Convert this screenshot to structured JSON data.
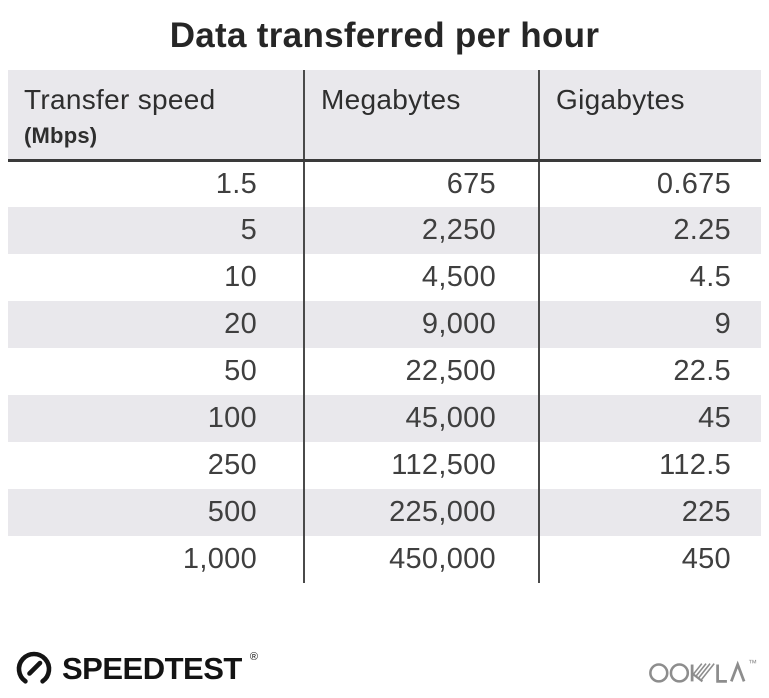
{
  "title": "Data transferred per hour",
  "table": {
    "columns": [
      {
        "label": "Transfer speed",
        "sublabel": "(Mbps)"
      },
      {
        "label": "Megabytes"
      },
      {
        "label": "Gigabytes"
      }
    ],
    "rows": [
      [
        "1.5",
        "675",
        "0.675"
      ],
      [
        "5",
        "2,250",
        "2.25"
      ],
      [
        "10",
        "4,500",
        "4.5"
      ],
      [
        "20",
        "9,000",
        "9"
      ],
      [
        "50",
        "22,500",
        "22.5"
      ],
      [
        "100",
        "45,000",
        "45"
      ],
      [
        "250",
        "112,500",
        "112.5"
      ],
      [
        "500",
        "225,000",
        "225"
      ],
      [
        "1,000",
        "450,000",
        "450"
      ]
    ]
  },
  "footer": {
    "speedtest_label": "SPEEDTEST",
    "speedtest_mark": "®",
    "ookla_label": "OOKLA",
    "ookla_mark": "™"
  },
  "icons": {
    "speedtest_gauge": "gauge-icon",
    "ookla_logo": "ookla-logo"
  },
  "colors": {
    "title_text": "#262626",
    "header_bg": "#e9e8ec",
    "row_alt_bg": "#e9e8ec",
    "header_text": "#2e2e2e",
    "header_rule": "#3a3a3a",
    "divider": "#4a4a4a",
    "body_text": "#3f3f3f",
    "speedtest_brand": "#141414",
    "ookla_gray": "#8d8d8d"
  },
  "chart_data": {
    "type": "table",
    "title": "Data transferred per hour",
    "columns": [
      "Transfer speed (Mbps)",
      "Megabytes",
      "Gigabytes"
    ],
    "rows": [
      [
        1.5,
        675,
        0.675
      ],
      [
        5,
        2250,
        2.25
      ],
      [
        10,
        4500,
        4.5
      ],
      [
        20,
        9000,
        9
      ],
      [
        50,
        22500,
        22.5
      ],
      [
        100,
        45000,
        45
      ],
      [
        250,
        112500,
        112.5
      ],
      [
        500,
        225000,
        225
      ],
      [
        1000,
        450000,
        450
      ]
    ],
    "layout": {
      "header_shaded": true,
      "zebra_striping": true,
      "column_dividers": true
    }
  }
}
